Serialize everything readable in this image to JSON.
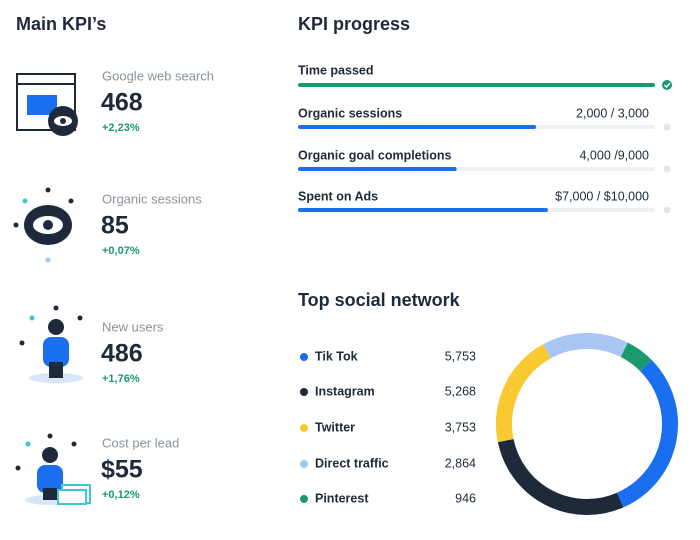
{
  "main_kpi": {
    "title": "Main KPI’s",
    "items": [
      {
        "label": "Google web search",
        "value": "468",
        "change": "+2,23%"
      },
      {
        "label": "Organic sessions",
        "value": "85",
        "change": "+0,07%"
      },
      {
        "label": "New users",
        "value": "486",
        "change": "+1,76%"
      },
      {
        "label": "Cost per lead",
        "value": "$55",
        "change": "+0,12%"
      }
    ]
  },
  "kpi_progress": {
    "title": "KPI progress",
    "time_label": "Time passed",
    "items": [
      {
        "label": "Organic sessions",
        "value": 2000,
        "target": 3000,
        "value_label": "2,000 / 3,000"
      },
      {
        "label": "Organic goal completions",
        "value": 4000,
        "target": 9000,
        "value_label": "4,000 /9,000"
      },
      {
        "label": "Spent on Ads",
        "value": 7000,
        "target": 10000,
        "value_label": "$7,000 / $10,000"
      }
    ]
  },
  "chart_data": {
    "type": "donut",
    "title": "Top social network",
    "categories": [
      "Tik Tok",
      "Instagram",
      "Twitter",
      "Direct traffic",
      "Pinterest"
    ],
    "values": [
      5753,
      5268,
      3753,
      2864,
      946
    ],
    "value_labels": [
      "5,753",
      "5,268",
      "3,753",
      "2,864",
      "946"
    ],
    "colors": [
      "#1a6ef0",
      "#1e2a3a",
      "#f9c932",
      "#a9c6f3",
      "#1a9a6a"
    ]
  }
}
